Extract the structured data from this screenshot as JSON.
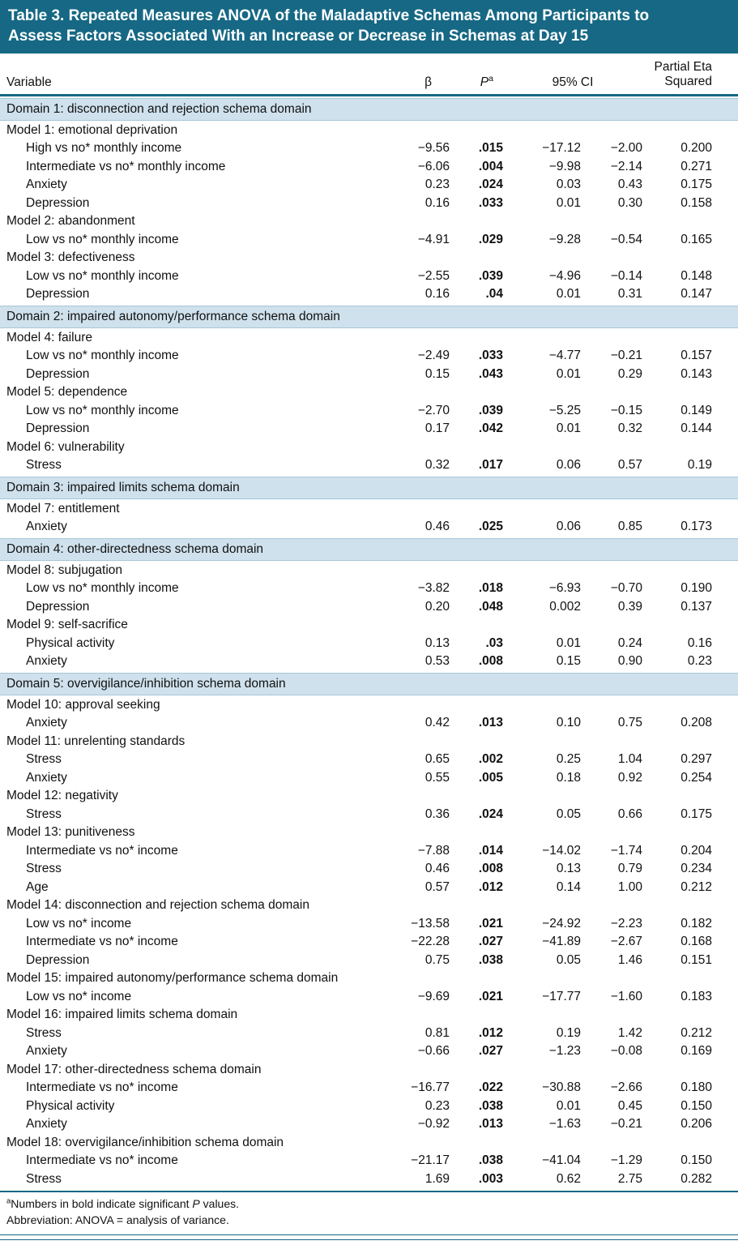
{
  "title": {
    "lines": [
      "Table 3. Repeated Measures ANOVA of the Maladaptive Schemas Among Participants to",
      "Assess Factors Associated With an Increase or Decrease in Schemas at Day 15"
    ]
  },
  "columns": {
    "variable": "Variable",
    "beta": "β",
    "p": "P",
    "p_sup": "a",
    "ci": "95% CI",
    "partial_eta": "Partial Eta\nSquared"
  },
  "sections": [
    {
      "domain": "Domain 1: disconnection and rejection schema domain",
      "groups": [
        {
          "model": "Model 1: emotional deprivation",
          "rows": [
            {
              "variable": "High vs no* monthly income",
              "beta": "−9.56",
              "p": ".015",
              "ci_low": "−17.12",
              "ci_high": "−2.00",
              "eta": "0.200"
            },
            {
              "variable": "Intermediate vs no* monthly income",
              "beta": "−6.06",
              "p": ".004",
              "ci_low": "−9.98",
              "ci_high": "−2.14",
              "eta": "0.271"
            },
            {
              "variable": "Anxiety",
              "beta": "0.23",
              "p": ".024",
              "ci_low": "0.03",
              "ci_high": "0.43",
              "eta": "0.175"
            },
            {
              "variable": "Depression",
              "beta": "0.16",
              "p": ".033",
              "ci_low": "0.01",
              "ci_high": "0.30",
              "eta": "0.158"
            }
          ]
        },
        {
          "model": "Model 2: abandonment",
          "rows": [
            {
              "variable": "Low vs no* monthly income",
              "beta": "−4.91",
              "p": ".029",
              "ci_low": "−9.28",
              "ci_high": "−0.54",
              "eta": "0.165"
            }
          ]
        },
        {
          "model": "Model 3: defectiveness",
          "rows": [
            {
              "variable": "Low vs no* monthly income",
              "beta": "−2.55",
              "p": ".039",
              "ci_low": "−4.96",
              "ci_high": "−0.14",
              "eta": "0.148"
            },
            {
              "variable": "Depression",
              "beta": "0.16",
              "p": ".04",
              "ci_low": "0.01",
              "ci_high": "0.31",
              "eta": "0.147"
            }
          ]
        }
      ]
    },
    {
      "domain": "Domain 2: impaired autonomy/performance schema domain",
      "groups": [
        {
          "model": "Model 4: failure",
          "rows": [
            {
              "variable": "Low vs no* monthly income",
              "beta": "−2.49",
              "p": ".033",
              "ci_low": "−4.77",
              "ci_high": "−0.21",
              "eta": "0.157"
            },
            {
              "variable": "Depression",
              "beta": "0.15",
              "p": ".043",
              "ci_low": "0.01",
              "ci_high": "0.29",
              "eta": "0.143"
            }
          ]
        },
        {
          "model": "Model 5: dependence",
          "rows": [
            {
              "variable": "Low vs no* monthly income",
              "beta": "−2.70",
              "p": ".039",
              "ci_low": "−5.25",
              "ci_high": "−0.15",
              "eta": "0.149"
            },
            {
              "variable": "Depression",
              "beta": "0.17",
              "p": ".042",
              "ci_low": "0.01",
              "ci_high": "0.32",
              "eta": "0.144"
            }
          ]
        },
        {
          "model": "Model 6: vulnerability",
          "rows": [
            {
              "variable": "Stress",
              "beta": "0.32",
              "p": ".017",
              "ci_low": "0.06",
              "ci_high": "0.57",
              "eta": "0.19"
            }
          ]
        }
      ]
    },
    {
      "domain": "Domain 3: impaired limits schema domain",
      "groups": [
        {
          "model": "Model 7: entitlement",
          "rows": [
            {
              "variable": "Anxiety",
              "beta": "0.46",
              "p": ".025",
              "ci_low": "0.06",
              "ci_high": "0.85",
              "eta": "0.173"
            }
          ]
        }
      ]
    },
    {
      "domain": "Domain 4: other-directedness schema domain",
      "groups": [
        {
          "model": "Model 8: subjugation",
          "rows": [
            {
              "variable": "Low vs no* monthly income",
              "beta": "−3.82",
              "p": ".018",
              "ci_low": "−6.93",
              "ci_high": "−0.70",
              "eta": "0.190"
            },
            {
              "variable": "Depression",
              "beta": "0.20",
              "p": ".048",
              "ci_low": "0.002",
              "ci_high": "0.39",
              "eta": "0.137"
            }
          ]
        },
        {
          "model": "Model 9: self-sacrifice",
          "rows": [
            {
              "variable": "Physical activity",
              "beta": "0.13",
              "p": ".03",
              "ci_low": "0.01",
              "ci_high": "0.24",
              "eta": "0.16"
            },
            {
              "variable": "Anxiety",
              "beta": "0.53",
              "p": ".008",
              "ci_low": "0.15",
              "ci_high": "0.90",
              "eta": "0.23"
            }
          ]
        }
      ]
    },
    {
      "domain": "Domain 5: overvigilance/inhibition schema domain",
      "groups": [
        {
          "model": "Model 10: approval seeking",
          "rows": [
            {
              "variable": "Anxiety",
              "beta": "0.42",
              "p": ".013",
              "ci_low": "0.10",
              "ci_high": "0.75",
              "eta": "0.208"
            }
          ]
        },
        {
          "model": "Model 11: unrelenting standards",
          "rows": [
            {
              "variable": "Stress",
              "beta": "0.65",
              "p": ".002",
              "ci_low": "0.25",
              "ci_high": "1.04",
              "eta": "0.297"
            },
            {
              "variable": "Anxiety",
              "beta": "0.55",
              "p": ".005",
              "ci_low": "0.18",
              "ci_high": "0.92",
              "eta": "0.254"
            }
          ]
        },
        {
          "model": "Model 12: negativity",
          "rows": [
            {
              "variable": "Stress",
              "beta": "0.36",
              "p": ".024",
              "ci_low": "0.05",
              "ci_high": "0.66",
              "eta": "0.175"
            }
          ]
        },
        {
          "model": "Model 13: punitiveness",
          "rows": [
            {
              "variable": "Intermediate vs no* income",
              "beta": "−7.88",
              "p": ".014",
              "ci_low": "−14.02",
              "ci_high": "−1.74",
              "eta": "0.204"
            },
            {
              "variable": "Stress",
              "beta": "0.46",
              "p": ".008",
              "ci_low": "0.13",
              "ci_high": "0.79",
              "eta": "0.234"
            },
            {
              "variable": "Age",
              "beta": "0.57",
              "p": ".012",
              "ci_low": "0.14",
              "ci_high": "1.00",
              "eta": "0.212"
            }
          ]
        },
        {
          "model": "Model 14: disconnection and rejection schema domain",
          "rows": [
            {
              "variable": "Low vs no* income",
              "beta": "−13.58",
              "p": ".021",
              "ci_low": "−24.92",
              "ci_high": "−2.23",
              "eta": "0.182"
            },
            {
              "variable": "Intermediate vs no* income",
              "beta": "−22.28",
              "p": ".027",
              "ci_low": "−41.89",
              "ci_high": "−2.67",
              "eta": "0.168"
            },
            {
              "variable": "Depression",
              "beta": "0.75",
              "p": ".038",
              "ci_low": "0.05",
              "ci_high": "1.46",
              "eta": "0.151"
            }
          ]
        },
        {
          "model": "Model 15: impaired autonomy/performance schema domain",
          "rows": [
            {
              "variable": "Low vs no* income",
              "beta": "−9.69",
              "p": ".021",
              "ci_low": "−17.77",
              "ci_high": "−1.60",
              "eta": "0.183"
            }
          ]
        },
        {
          "model": "Model 16: impaired limits schema domain",
          "rows": [
            {
              "variable": "Stress",
              "beta": "0.81",
              "p": ".012",
              "ci_low": "0.19",
              "ci_high": "1.42",
              "eta": "0.212"
            },
            {
              "variable": "Anxiety",
              "beta": "−0.66",
              "p": ".027",
              "ci_low": "−1.23",
              "ci_high": "−0.08",
              "eta": "0.169"
            }
          ]
        },
        {
          "model": "Model 17: other-directedness schema domain",
          "rows": [
            {
              "variable": "Intermediate vs no* income",
              "beta": "−16.77",
              "p": ".022",
              "ci_low": "−30.88",
              "ci_high": "−2.66",
              "eta": "0.180"
            },
            {
              "variable": "Physical activity",
              "beta": "0.23",
              "p": ".038",
              "ci_low": "0.01",
              "ci_high": "0.45",
              "eta": "0.150"
            },
            {
              "variable": "Anxiety",
              "beta": "−0.92",
              "p": ".013",
              "ci_low": "−1.63",
              "ci_high": "−0.21",
              "eta": "0.206"
            }
          ]
        },
        {
          "model": "Model 18: overvigilance/inhibition schema domain",
          "rows": [
            {
              "variable": "Intermediate vs no* income",
              "beta": "−21.17",
              "p": ".038",
              "ci_low": "−41.04",
              "ci_high": "−1.29",
              "eta": "0.150"
            },
            {
              "variable": "Stress",
              "beta": "1.69",
              "p": ".003",
              "ci_low": "0.62",
              "ci_high": "2.75",
              "eta": "0.282"
            }
          ]
        }
      ]
    }
  ],
  "footnotes": {
    "significance_sup": "a",
    "significance_pre": "Numbers in bold indicate significant ",
    "significance_italic": "P",
    "significance_post": " values.",
    "abbreviation": "Abbreviation: ANOVA = analysis of variance."
  },
  "colors": {
    "accent_teal": "#166884",
    "band_blue": "#cfe1ec",
    "title_text": "#ffffff"
  }
}
